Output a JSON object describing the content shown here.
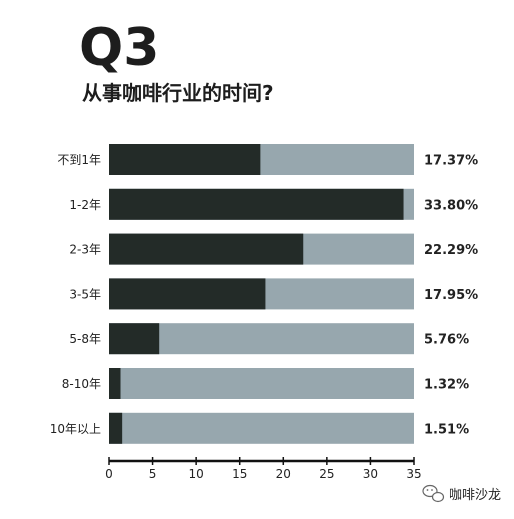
{
  "header": {
    "label": "Q3",
    "question": "从事咖啡行业的时间?"
  },
  "colors": {
    "background": "#ffffff",
    "bar_fill": "#232b28",
    "bar_remainder": "#97a7ae",
    "text": "#222222",
    "watermark_icon": "#666666"
  },
  "watermark": {
    "icon": "wechat-bubble-icon",
    "text": "咖啡沙龙"
  },
  "chart_data": {
    "type": "bar",
    "orientation": "horizontal",
    "categories": [
      "不到1年",
      "1-2年",
      "2-3年",
      "3-5年",
      "5-8年",
      "8-10年",
      "10年以上"
    ],
    "values": [
      17.37,
      33.8,
      22.29,
      17.95,
      5.76,
      1.32,
      1.51
    ],
    "value_labels": [
      "17.37%",
      "33.80%",
      "22.29%",
      "17.95%",
      "5.76%",
      "1.32%",
      "1.51%"
    ],
    "xlim": [
      0,
      35
    ],
    "xticks": [
      "0",
      "5",
      "10",
      "15",
      "20",
      "25",
      "30",
      "35"
    ],
    "grid": false,
    "title": "从事咖啡行业的时间?",
    "xlabel": "",
    "ylabel": ""
  }
}
